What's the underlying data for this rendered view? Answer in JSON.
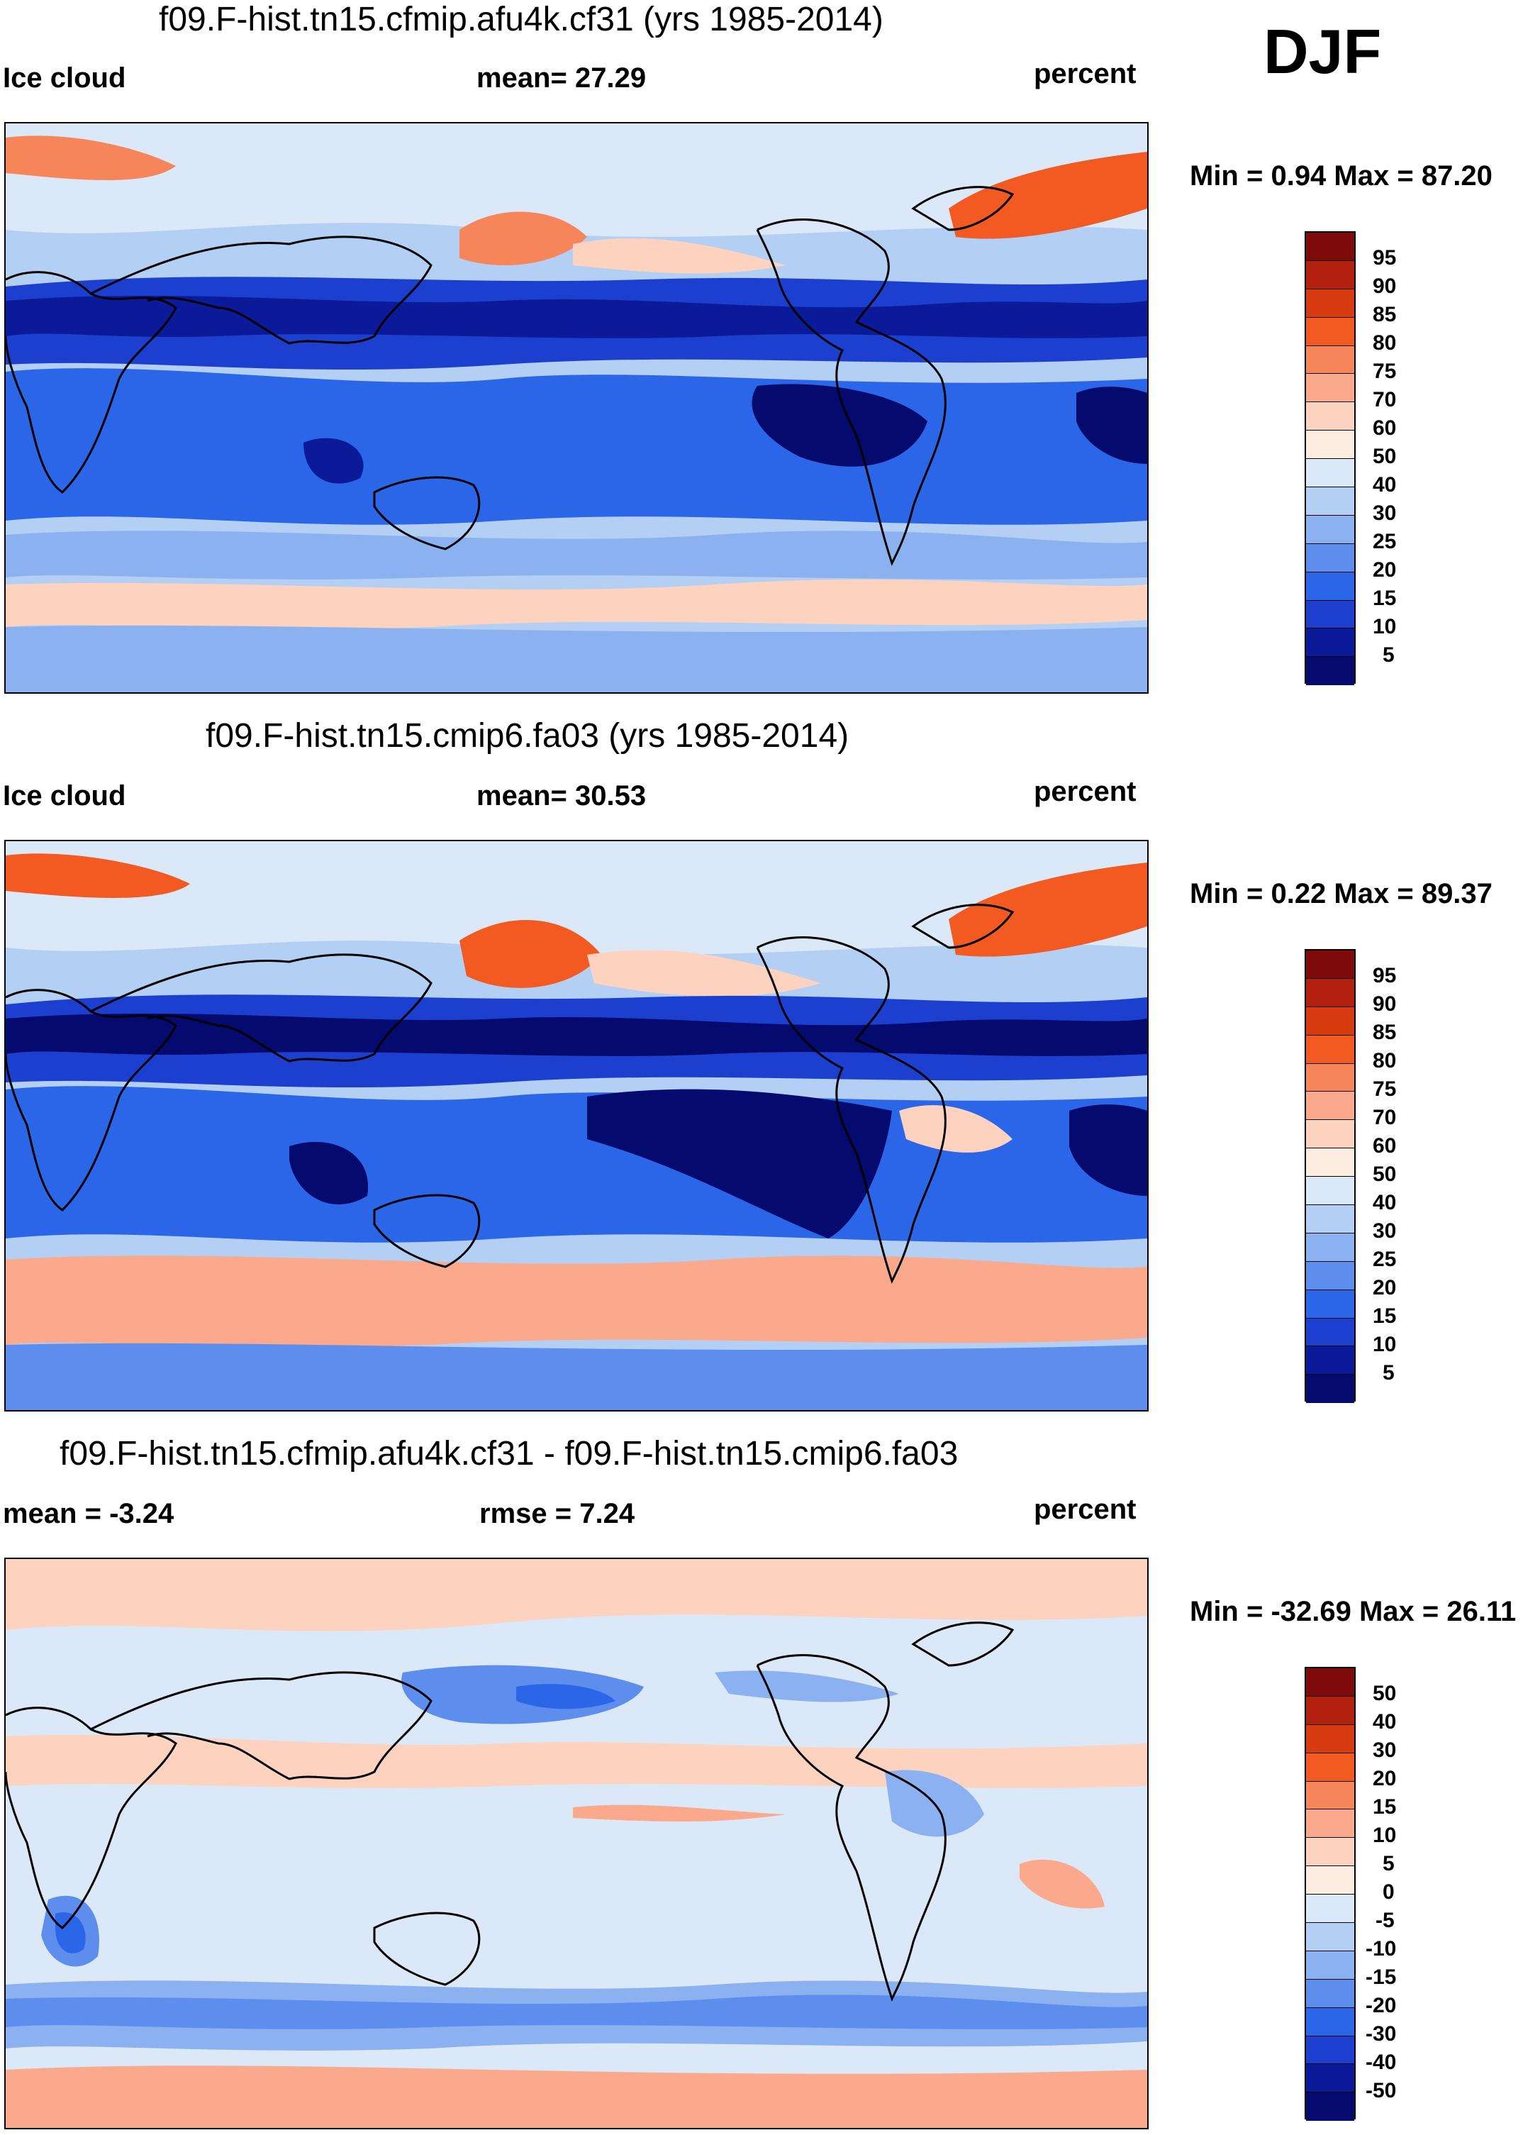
{
  "season": "DJF",
  "panels": [
    {
      "id": "top",
      "title": "f09.F-hist.tn15.cfmip.afu4k.cf31 (yrs 1985-2014)",
      "left_label": "Ice cloud",
      "center_label": "mean=  27.29",
      "right_label": "percent",
      "minmax": "Min =   0.94 Max =  87.20",
      "colorbar_labels": [
        "95",
        "90",
        "85",
        "80",
        "75",
        "70",
        "60",
        "50",
        "40",
        "30",
        "25",
        "20",
        "15",
        "10",
        "5"
      ]
    },
    {
      "id": "middle",
      "title": "f09.F-hist.tn15.cmip6.fa03 (yrs 1985-2014)",
      "left_label": "Ice cloud",
      "center_label": "mean=  30.53",
      "right_label": "percent",
      "minmax": "Min =   0.22 Max =  89.37",
      "colorbar_labels": [
        "95",
        "90",
        "85",
        "80",
        "75",
        "70",
        "60",
        "50",
        "40",
        "30",
        "25",
        "20",
        "15",
        "10",
        "5"
      ]
    },
    {
      "id": "bottom",
      "title": "f09.F-hist.tn15.cfmip.afu4k.cf31 - f09.F-hist.tn15.cmip6.fa03",
      "left_label": "mean =  -3.24",
      "center_label": "rmse =   7.24",
      "right_label": "percent",
      "minmax": "Min = -32.69 Max =  26.11",
      "colorbar_labels": [
        "50",
        "40",
        "30",
        "20",
        "15",
        "10",
        "5",
        "0",
        "-5",
        "-10",
        "-15",
        "-20",
        "-30",
        "-40",
        "-50"
      ]
    }
  ],
  "colors": {
    "abs_scale": [
      "#7f0a0a",
      "#b3200e",
      "#d93b10",
      "#f25a22",
      "#f7855a",
      "#fba98c",
      "#fdd3bf",
      "#fdece0",
      "#dbe8f8",
      "#b4cff4",
      "#8cb1f0",
      "#5d8ded",
      "#2c66e8",
      "#1d3fd0",
      "#0b1a98",
      "#040a6e"
    ],
    "diff_scale": [
      "#7f0a0a",
      "#b3200e",
      "#d93b10",
      "#f25a22",
      "#f7855a",
      "#fba98c",
      "#fdd3bf",
      "#fdece0",
      "#dbe8f8",
      "#b4cff4",
      "#8cb1f0",
      "#5d8ded",
      "#2c66e8",
      "#1d3fd0",
      "#0b1a98",
      "#040a6e"
    ]
  }
}
